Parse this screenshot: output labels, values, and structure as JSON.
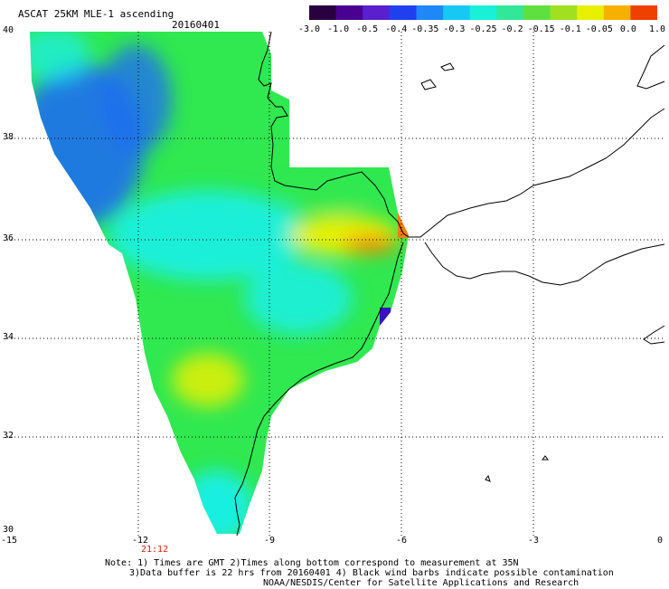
{
  "header": {
    "title": "ASCAT 25KM MLE-1 ascending",
    "date": "20160401"
  },
  "colorbar": {
    "labels": [
      "-3.0",
      "-1.0",
      "-0.5",
      "-0.4",
      "-0.35",
      "-0.3",
      "-0.25",
      "-0.2",
      "-0.15",
      "-0.1",
      "-0.05",
      "0.0",
      "1.0"
    ],
    "colors": [
      "#2a0040",
      "#4a0090",
      "#5a20d0",
      "#2040f0",
      "#1e88f6",
      "#18c8f4",
      "#18f0d8",
      "#30e898",
      "#60e040",
      "#a0e020",
      "#e8f000",
      "#f8b000",
      "#f04000"
    ]
  },
  "axes": {
    "y_ticks": [
      "40",
      "38",
      "36",
      "34",
      "32",
      "30"
    ],
    "x_ticks": [
      "-15",
      "-12",
      "-9",
      "-6",
      "-3",
      "0"
    ],
    "time_label": "21:12"
  },
  "notes": [
    "Note: 1) Times are GMT 2)Times along bottom correspond to measurement at 35N",
    "3)Data buffer is 22 hrs from 20160401 4) Black wind barbs indicate possible contamination",
    "NOAA/NESDIS/Center for Satellite Applications and Research"
  ],
  "palette": {
    "blue": "#1e6ef0",
    "cyan": "#18f0f0",
    "green": "#30e850",
    "yellow": "#f0f000",
    "orange": "#f88000",
    "purple": "#3a10c0",
    "coast": "#000000"
  }
}
